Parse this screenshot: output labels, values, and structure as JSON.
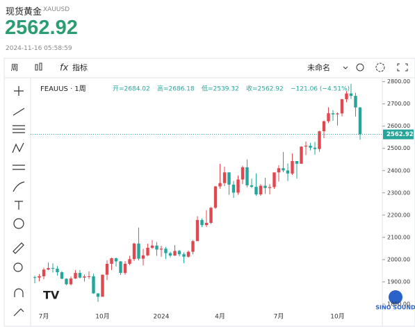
{
  "header": {
    "name": "现货黄金",
    "symbol": "XAUUSD",
    "price": "2562.92",
    "time": "2024-11-16 05:58:59"
  },
  "toolbar": {
    "interval": "周",
    "indicators": "指标",
    "layout": "未命名"
  },
  "legend": {
    "symbol": "FEAUUS · 1周",
    "open": "开=2684.02",
    "high": "高=2686.18",
    "low": "低=2539.32",
    "close": "收=2562.92",
    "change": "−121.06 (−4.51%)"
  },
  "watermark": "SINO SOUND",
  "chart_data": {
    "type": "candlestick",
    "up_color": "#e0484f",
    "down_color": "#26a69a",
    "categories": [
      null,
      null,
      "7月",
      null,
      null,
      null,
      null,
      null,
      null,
      null,
      null,
      null,
      null,
      null,
      null,
      "10月",
      null,
      null,
      null,
      null,
      null,
      null,
      null,
      null,
      null,
      null,
      null,
      null,
      "2024",
      null,
      null,
      null,
      null,
      null,
      null,
      null,
      null,
      null,
      null,
      null,
      null,
      "4月",
      null,
      null,
      null,
      null,
      null,
      null,
      null,
      null,
      null,
      null,
      null,
      null,
      "7月",
      null,
      null,
      null,
      null,
      null,
      null,
      null,
      null,
      null,
      null,
      null,
      null,
      "10月",
      null,
      null,
      null,
      null,
      null
    ],
    "open": [
      1921,
      1919,
      1925,
      1955,
      1962,
      1959,
      1943,
      1914,
      1889,
      1915,
      1940,
      1919,
      1924,
      1925,
      1848,
      1833,
      1932,
      1981,
      2006,
      1992,
      1940,
      1981,
      2002,
      2072,
      2004,
      2019,
      2053,
      2063,
      2045,
      2049,
      2029,
      2018,
      2039,
      2024,
      2013,
      2035,
      2083,
      2178,
      2155,
      2165,
      2233,
      2329,
      2344,
      2392,
      2337,
      2301,
      2360,
      2415,
      2334,
      2327,
      2293,
      2332,
      2322,
      2326,
      2392,
      2411,
      2401,
      2387,
      2443,
      2431,
      2508,
      2512,
      2503,
      2497,
      2577,
      2622,
      2658,
      2653,
      2657,
      2721,
      2747,
      2736,
      2684.02
    ],
    "high": [
      1927,
      1935,
      1963,
      1987,
      1983,
      1971,
      1948,
      1916,
      1924,
      1953,
      1953,
      1933,
      1947,
      1936,
      1850,
      1933,
      1997,
      2009,
      2009,
      1993,
      1993,
      2017,
      2076,
      2144,
      2048,
      2071,
      2088,
      2079,
      2062,
      2057,
      2036,
      2065,
      2044,
      2032,
      2041,
      2088,
      2195,
      2185,
      2222,
      2236,
      2331,
      2431,
      2418,
      2393,
      2354,
      2378,
      2422,
      2450,
      2364,
      2388,
      2339,
      2368,
      2339,
      2392,
      2424,
      2484,
      2432,
      2477,
      2443,
      2509,
      2531,
      2525,
      2529,
      2579,
      2625,
      2685,
      2672,
      2661,
      2722,
      2758,
      2790,
      2750,
      2686.18
    ],
    "low": [
      1893,
      1902,
      1912,
      1953,
      1942,
      1928,
      1912,
      1885,
      1884,
      1913,
      1915,
      1901,
      1913,
      1846,
      1810,
      1833,
      1908,
      1953,
      1969,
      1931,
      1932,
      1975,
      1993,
      1996,
      1973,
      2016,
      2048,
      2017,
      2013,
      2002,
      2010,
      2016,
      2015,
      1984,
      2009,
      2024,
      2083,
      2146,
      2146,
      2160,
      2228,
      2319,
      2330,
      2291,
      2277,
      2291,
      2340,
      2325,
      2322,
      2287,
      2286,
      2295,
      2293,
      2318,
      2351,
      2393,
      2353,
      2380,
      2364,
      2431,
      2470,
      2491,
      2472,
      2485,
      2546,
      2614,
      2624,
      2603,
      2644,
      2707,
      2722,
      2643,
      2539.32
    ],
    "close": [
      1919,
      1925,
      1955,
      1962,
      1959,
      1943,
      1914,
      1889,
      1915,
      1940,
      1919,
      1924,
      1925,
      1848,
      1833,
      1932,
      1981,
      2006,
      1992,
      1940,
      1981,
      2002,
      2072,
      2004,
      2019,
      2053,
      2063,
      2045,
      2049,
      2029,
      2018,
      2039,
      2024,
      2013,
      2035,
      2083,
      2178,
      2155,
      2165,
      2233,
      2329,
      2344,
      2392,
      2337,
      2301,
      2360,
      2415,
      2334,
      2327,
      2293,
      2332,
      2322,
      2326,
      2392,
      2411,
      2401,
      2387,
      2443,
      2431,
      2508,
      2512,
      2503,
      2497,
      2577,
      2622,
      2658,
      2653,
      2657,
      2721,
      2747,
      2736,
      2684.02,
      2562.92
    ],
    "ylim": [
      1725,
      2830
    ],
    "yticks": [
      {
        "value": 1800,
        "label": "1800.00"
      },
      {
        "value": 1900,
        "label": "1900.00"
      },
      {
        "value": 2000,
        "label": "2000.00"
      },
      {
        "value": 2100,
        "label": "2100.00"
      },
      {
        "value": 2200,
        "label": "2200.00"
      },
      {
        "value": 2300,
        "label": "2300.00"
      },
      {
        "value": 2400,
        "label": "2400.00"
      },
      {
        "value": 2500,
        "label": "2500.00"
      },
      {
        "value": 2600,
        "label": "2600.00"
      },
      {
        "value": 2700,
        "label": "2700.00"
      },
      {
        "value": 2800,
        "label": "2800.00"
      }
    ]
  }
}
